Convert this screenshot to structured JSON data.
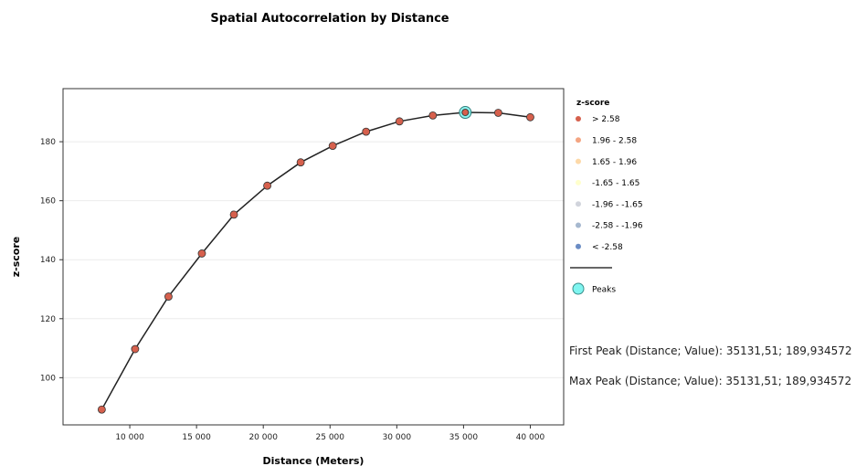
{
  "chart_data": {
    "type": "line",
    "title": "Spatial Autocorrelation by Distance",
    "xlabel": "Distance (Meters)",
    "ylabel": "z-score",
    "xlim": [
      5000,
      42500
    ],
    "ylim": [
      84,
      198
    ],
    "x_ticks": [
      10000,
      15000,
      20000,
      25000,
      30000,
      35000,
      40000
    ],
    "x_tick_labels": [
      "10 000",
      "15 000",
      "20 000",
      "25 000",
      "30 000",
      "35 000",
      "40 000"
    ],
    "y_ticks": [
      100,
      120,
      140,
      160,
      180
    ],
    "y_tick_labels": [
      "100",
      "120",
      "140",
      "160",
      "180"
    ],
    "grid": "horizontal",
    "series": [
      {
        "x": [
          7900,
          10400,
          12900,
          15400,
          17800,
          20300,
          22800,
          25200,
          27700,
          30200,
          32700,
          35131.51,
          37600,
          40000
        ],
        "y": [
          89.2,
          109.7,
          127.5,
          142.1,
          155.3,
          165.1,
          173.0,
          178.6,
          183.4,
          186.9,
          188.9,
          189.934572,
          189.8,
          188.3
        ],
        "color": "#d6604d",
        "line_color": "#222222"
      }
    ],
    "peaks": [
      {
        "x": 35131.51,
        "y": 189.934572,
        "color": "#7ff5f0"
      }
    ],
    "legend": {
      "position": "right",
      "title": "z-score",
      "items": [
        {
          "label": "> 2.58",
          "color": "#d6604d"
        },
        {
          "label": "1.96 - 2.58",
          "color": "#f4a582"
        },
        {
          "label": "1.65 - 1.96",
          "color": "#fdd9a8"
        },
        {
          "label": "-1.65 - 1.65",
          "color": "#ffffcc"
        },
        {
          "label": "-1.96 - -1.65",
          "color": "#d1d4dc"
        },
        {
          "label": "-2.58 - -1.96",
          "color": "#a6b8cf"
        },
        {
          "label": "< -2.58",
          "color": "#6a8cc4"
        }
      ],
      "line_label": "",
      "peaks_label": "Peaks"
    }
  },
  "info": {
    "first_peak": "First Peak (Distance; Value): 35131,51; 189,934572",
    "max_peak": "Max Peak (Distance; Value): 35131,51; 189,934572"
  }
}
